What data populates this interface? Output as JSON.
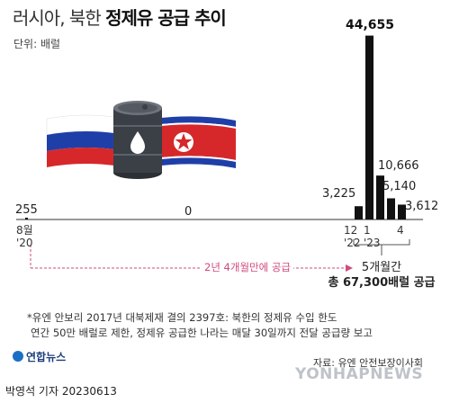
{
  "title_part1": "러시아, 북한",
  "title_part2": "정제유 공급 추이",
  "unit": "단위: 배럴",
  "chart_data": {
    "type": "bar",
    "title": "러시아, 북한 정제유 공급 추이",
    "unit": "배럴",
    "x": [
      "2020-08",
      "2022-12",
      "2023-01",
      "2023-02",
      "2023-03",
      "2023-04"
    ],
    "values": [
      255,
      3225,
      44655,
      10666,
      5140,
      3612
    ],
    "value_labels": [
      "255",
      "3,225",
      "44,655",
      "10,666",
      "5,140",
      "3,612"
    ],
    "gap_value_label": "0",
    "ticks": [
      {
        "line1": "8월",
        "line2": "'20"
      },
      {
        "line1": "12",
        "line2": "'22"
      },
      {
        "line1": "1",
        "line2": "'23"
      },
      {
        "line1": "4",
        "line2": ""
      }
    ],
    "bar_color": "#111111",
    "accent_color": "#d04a7e"
  },
  "gap_label": "2년 4개월만에 공급",
  "summary_line1": "5개월간",
  "summary_line2": "총 67,300배럴 공급",
  "note_line1": "*유엔 안보리 2017년 대북제재 결의 2397호: 북한의 정제유 수입 한도",
  "note_line2": "연간 50만 배럴로 제한, 정제유 공급한 나라는 매달 30일까지 전달 공급량 보고",
  "logo_text": "연합뉴스",
  "source": "자료: 유엔 안전보장이사회",
  "watermark": "YONHAPNEWS",
  "byline": "박영석 기자  20230613"
}
